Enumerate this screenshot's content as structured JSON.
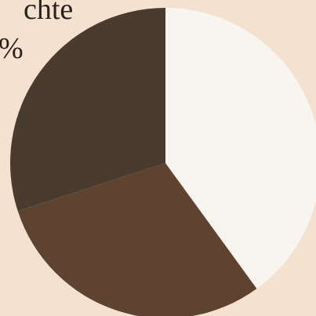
{
  "chart_data": {
    "type": "pie",
    "values": [
      40,
      30,
      30
    ],
    "colors": [
      "#f8f5f0",
      "#5e4430",
      "#4a3b30"
    ],
    "annotations": [
      "chte",
      "%"
    ]
  }
}
